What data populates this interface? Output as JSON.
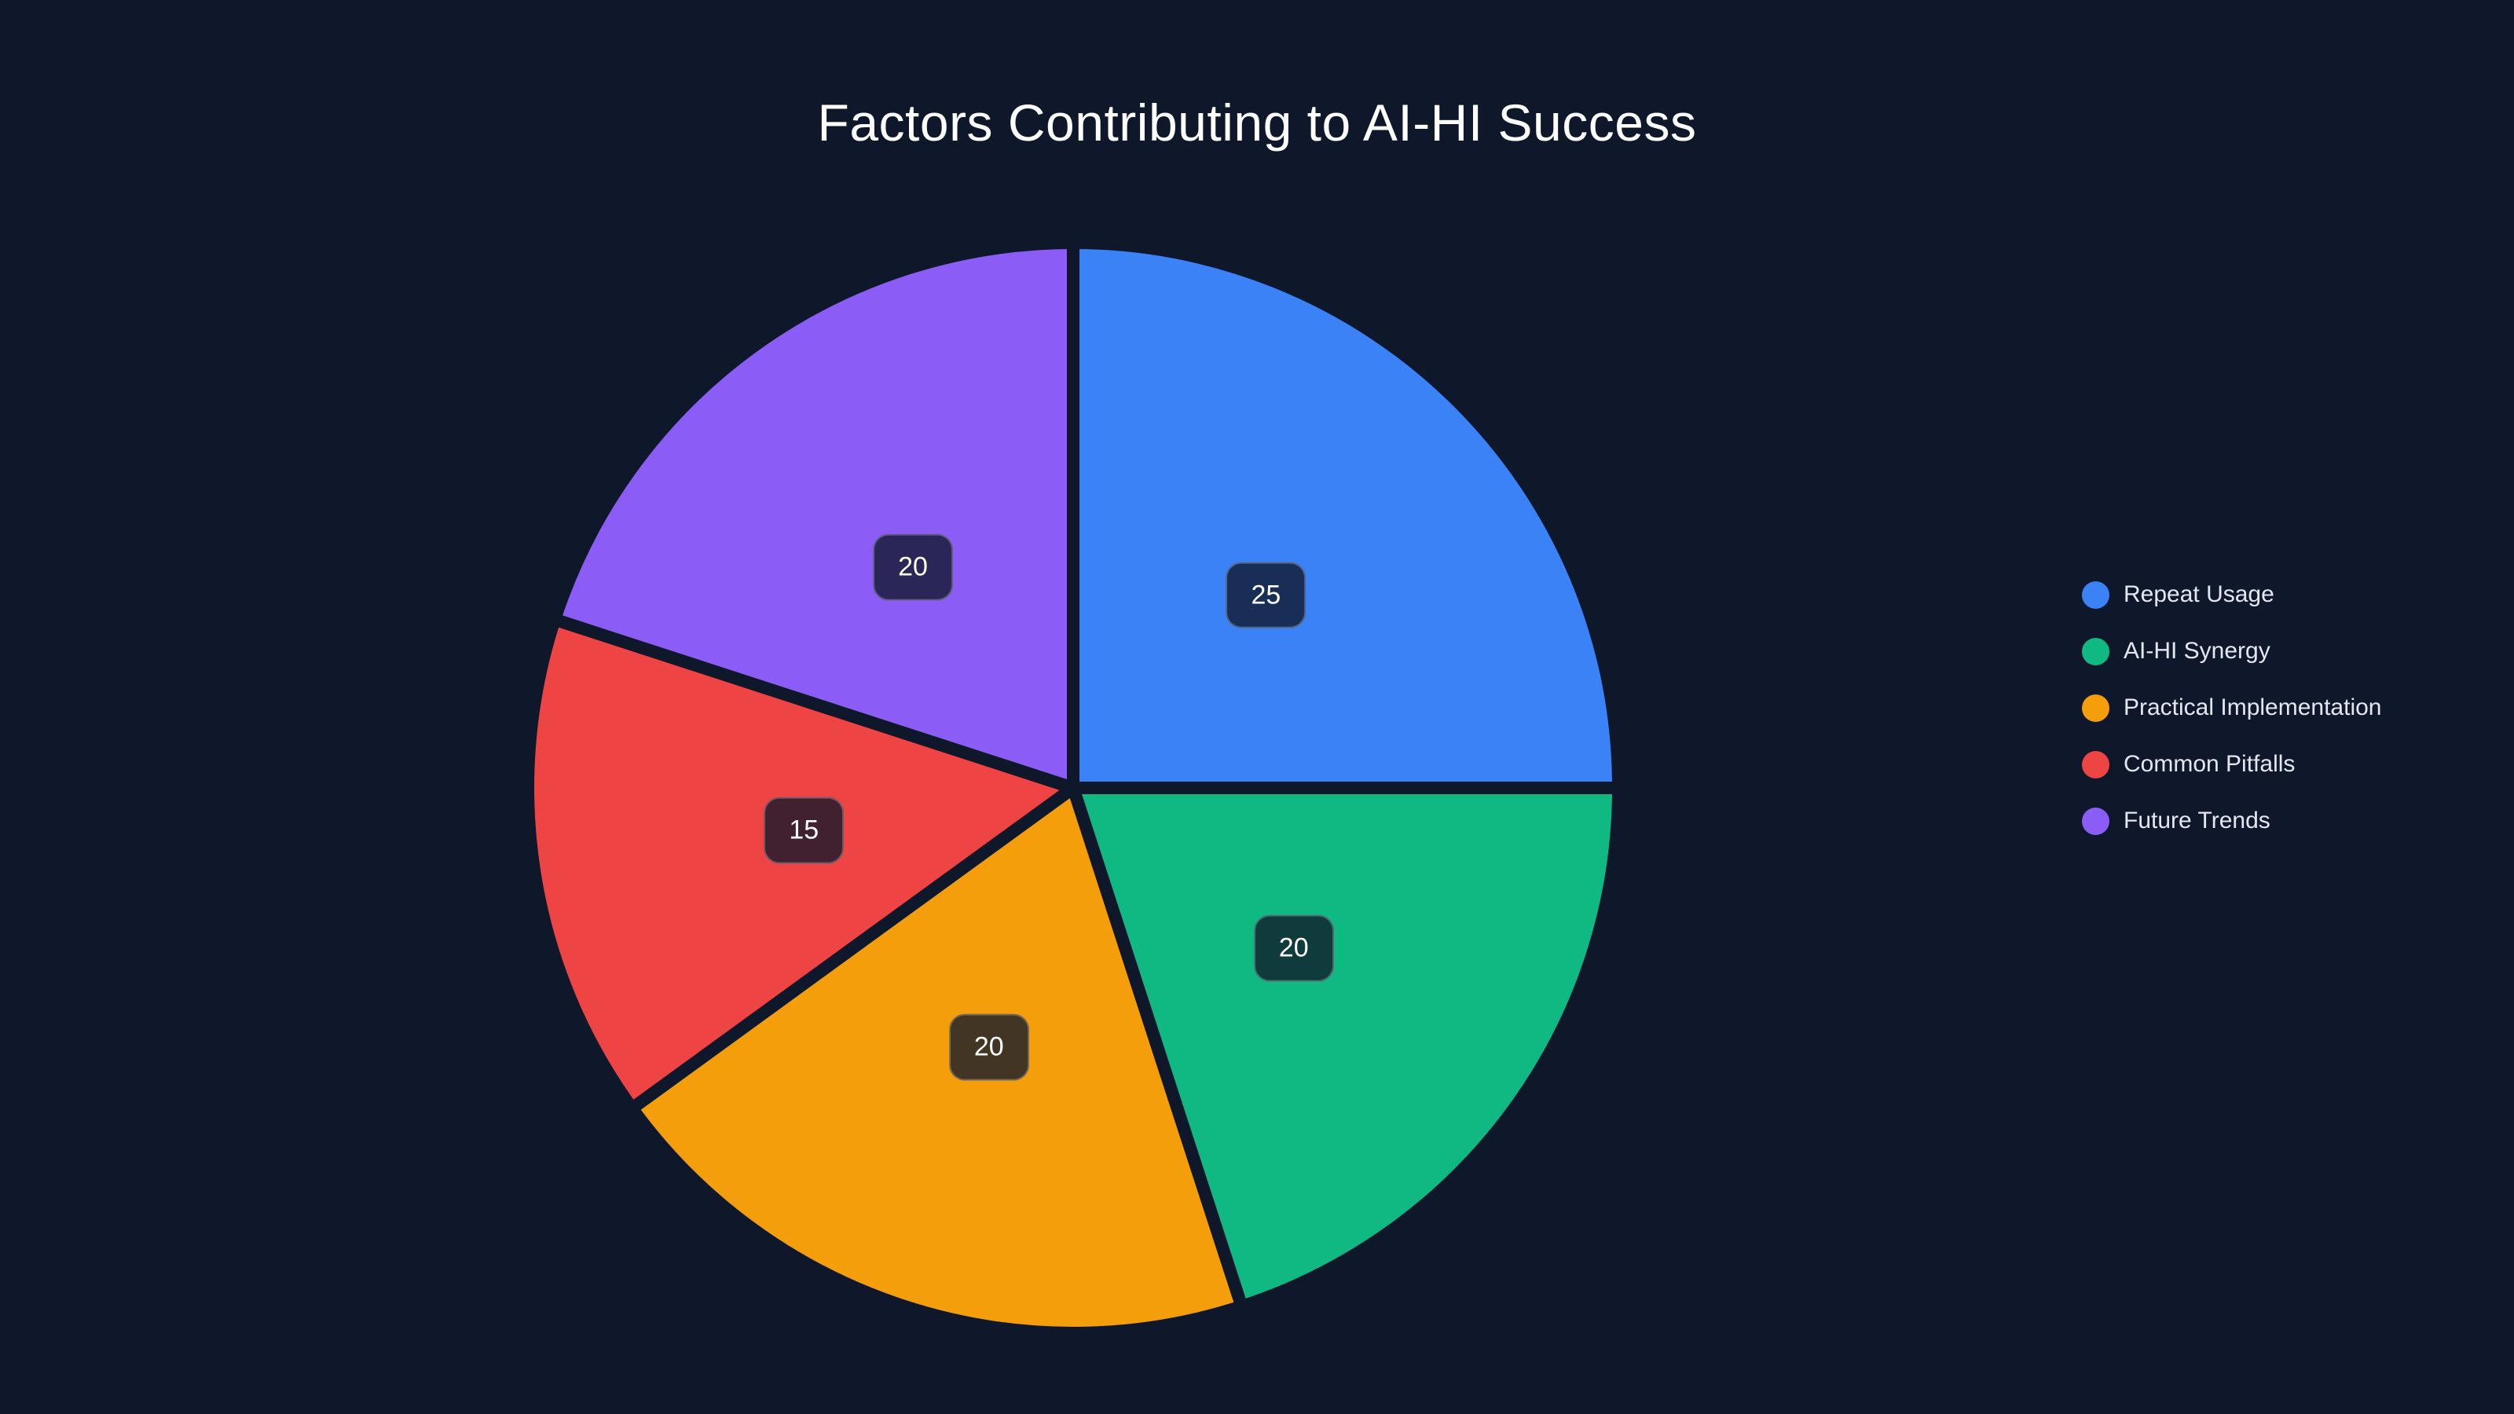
{
  "page": {
    "background": "#0f172a"
  },
  "chart_data": {
    "type": "pie",
    "title": "Factors Contributing to AI-HI Success",
    "categories": [
      "Repeat Usage",
      "AI-HI Synergy",
      "Practical Implementation",
      "Common Pitfalls",
      "Future Trends"
    ],
    "values": [
      25,
      20,
      20,
      15,
      20
    ],
    "total": 100,
    "value_labels": [
      "25",
      "20",
      "20",
      "15",
      "20"
    ],
    "slice_colors": [
      "#3b82f6",
      "#10b981",
      "#f59e0b",
      "#ef4444",
      "#8b5cf6"
    ],
    "start_angle_deg": 0,
    "direction": "clockwise",
    "label_radius_fraction": 0.5,
    "legend_position": "right",
    "style": {
      "title_color": "#ffffff",
      "legend_text_color": "#e2e8f0",
      "slice_separator_color": "#0f172a",
      "slice_separator_width": 16,
      "value_label_bg": "rgba(15,23,42,0.78)",
      "value_label_border": "rgba(255,255,255,0.25)",
      "value_label_text_color": "#ffffff"
    }
  }
}
